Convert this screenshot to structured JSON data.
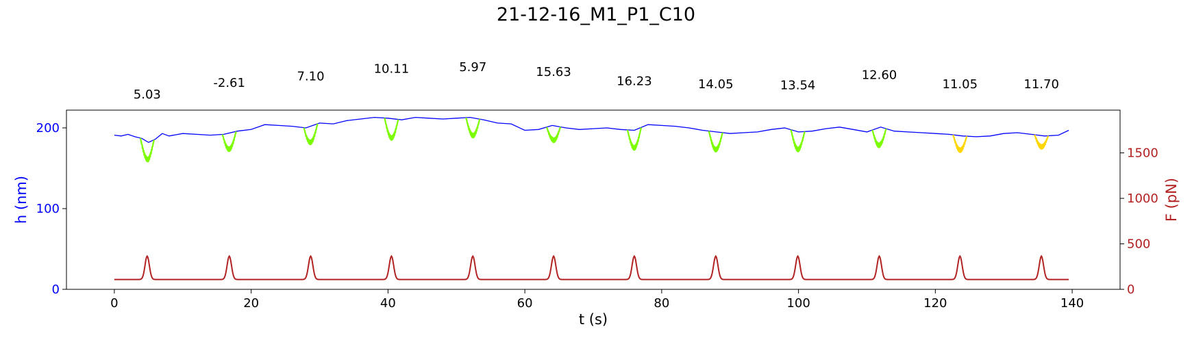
{
  "chart_data": {
    "type": "line",
    "title": "21-12-16_M1_P1_C10",
    "xlabel": "t (s)",
    "ylabel_left": "h (nm)",
    "ylabel_right": "F (pN)",
    "xlim": [
      -7,
      147
    ],
    "ylim_left": [
      0,
      222
    ],
    "ylim_right": [
      0,
      1970
    ],
    "x_ticks": [
      0,
      20,
      40,
      60,
      80,
      100,
      120,
      140
    ],
    "y_ticks_left": [
      0,
      100,
      200
    ],
    "y_ticks_right": [
      0,
      500,
      1000,
      1500
    ],
    "grid": false,
    "colors": {
      "height": "#0000ff",
      "force": "#b22222",
      "segment_green": "#7cfc00",
      "segment_gold": "#ffd700",
      "left_axis": "#0000ff",
      "right_axis": "#b22222"
    },
    "force_cycles": {
      "peak_times": [
        4.8,
        16.8,
        28.7,
        40.5,
        52.4,
        64.2,
        76.0,
        87.9,
        99.9,
        111.8,
        123.6,
        135.5
      ],
      "peak_force": 365,
      "baseline_force": 108,
      "t_start": 0,
      "t_end": 139.5
    },
    "annotations": [
      {
        "t": 4.8,
        "label": "5.03"
      },
      {
        "t": 16.8,
        "label": "-2.61"
      },
      {
        "t": 28.7,
        "label": "7.10"
      },
      {
        "t": 40.5,
        "label": "10.11"
      },
      {
        "t": 52.4,
        "label": "5.97"
      },
      {
        "t": 64.2,
        "label": "15.63"
      },
      {
        "t": 76.0,
        "label": "16.23"
      },
      {
        "t": 87.9,
        "label": "14.05"
      },
      {
        "t": 99.9,
        "label": "13.54"
      },
      {
        "t": 111.8,
        "label": "12.60"
      },
      {
        "t": 123.6,
        "label": "11.05"
      },
      {
        "t": 135.5,
        "label": "11.70"
      }
    ],
    "annotation_levels": [
      5.03,
      12.5,
      16.5,
      21.5,
      22.5,
      19.5,
      13.5,
      11.5,
      11.0,
      17.5,
      11.5,
      11.5
    ],
    "series": [
      {
        "name": "height",
        "color": "#0000ff",
        "x": [
          0,
          1,
          2,
          3,
          4,
          5,
          6,
          7,
          8,
          10,
          12,
          14,
          16,
          18,
          20,
          22,
          24,
          26,
          28,
          30,
          32,
          34,
          36,
          38,
          40,
          42,
          44,
          46,
          48,
          50,
          52,
          54,
          56,
          58,
          60,
          62,
          64,
          66,
          68,
          70,
          72,
          74,
          76,
          78,
          80,
          82,
          84,
          86,
          88,
          90,
          92,
          94,
          96,
          98,
          100,
          102,
          104,
          106,
          108,
          110,
          112,
          114,
          116,
          118,
          120,
          122,
          124,
          126,
          128,
          130,
          132,
          134,
          136,
          138,
          139.5
        ],
        "y": [
          191,
          190,
          192,
          189,
          187,
          182,
          186,
          193,
          190,
          193,
          192,
          191,
          192,
          196,
          198,
          204,
          203,
          202,
          200,
          206,
          205,
          209,
          211,
          213,
          212,
          210,
          213,
          212,
          211,
          212,
          213,
          210,
          206,
          205,
          197,
          198,
          203,
          200,
          198,
          199,
          200,
          198,
          197,
          204,
          203,
          202,
          200,
          197,
          195,
          193,
          194,
          195,
          198,
          200,
          195,
          196,
          199,
          201,
          198,
          195,
          201,
          196,
          195,
          194,
          193,
          192,
          190,
          189,
          190,
          193,
          194,
          192,
          190,
          191,
          197
        ]
      },
      {
        "name": "force",
        "color": "#b22222"
      }
    ],
    "segments": [
      {
        "t_start": 3.8,
        "t_end": 5.8,
        "depth": 22,
        "color": "#7cfc00"
      },
      {
        "t_start": 15.8,
        "t_end": 17.8,
        "depth": 20,
        "color": "#7cfc00"
      },
      {
        "t_start": 27.7,
        "t_end": 29.7,
        "depth": 20,
        "color": "#7cfc00"
      },
      {
        "t_start": 39.5,
        "t_end": 41.5,
        "depth": 24,
        "color": "#7cfc00"
      },
      {
        "t_start": 51.4,
        "t_end": 53.4,
        "depth": 22,
        "color": "#7cfc00"
      },
      {
        "t_start": 63.2,
        "t_end": 65.2,
        "depth": 18,
        "color": "#7cfc00"
      },
      {
        "t_start": 75.0,
        "t_end": 77.0,
        "depth": 22,
        "color": "#7cfc00"
      },
      {
        "t_start": 86.9,
        "t_end": 88.9,
        "depth": 22,
        "color": "#7cfc00"
      },
      {
        "t_start": 98.9,
        "t_end": 100.9,
        "depth": 22,
        "color": "#7cfc00"
      },
      {
        "t_start": 110.8,
        "t_end": 112.8,
        "depth": 22,
        "color": "#7cfc00"
      },
      {
        "t_start": 122.6,
        "t_end": 124.6,
        "depth": 18,
        "color": "#ffd700"
      },
      {
        "t_start": 134.5,
        "t_end": 136.5,
        "depth": 14,
        "color": "#ffd700"
      }
    ]
  }
}
